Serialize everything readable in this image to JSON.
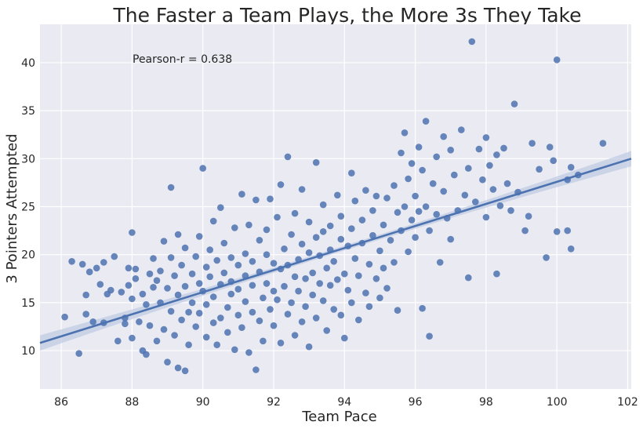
{
  "chart_data": {
    "type": "scatter",
    "title": "The Faster a Team Plays, the More 3s They Take",
    "xlabel": "Team Pace",
    "ylabel": "3 Pointers Attempted",
    "xlim": [
      85.4,
      102.1
    ],
    "ylim": [
      6.0,
      44.0
    ],
    "xticks": [
      "86",
      "88",
      "90",
      "92",
      "94",
      "96",
      "98",
      "100",
      "102"
    ],
    "yticks": [
      "10",
      "15",
      "20",
      "25",
      "30",
      "35",
      "40"
    ],
    "grid": true,
    "annotation": "Pearson-r = 0.638",
    "colors": {
      "background": "#EAEAF2",
      "grid": "#FFFFFF",
      "point": "#4C72B0",
      "line": "#4C72B0",
      "ci_band": "#C0CCE3"
    },
    "regression": {
      "x": [
        85.4,
        102.1
      ],
      "y": [
        10.8,
        30.0
      ],
      "ci_halfwidth_edge": 0.8,
      "ci_halfwidth_center": 0.25
    },
    "points": [
      [
        86.1,
        13.5
      ],
      [
        86.3,
        19.3
      ],
      [
        86.5,
        9.7
      ],
      [
        86.6,
        19.0
      ],
      [
        86.7,
        13.8
      ],
      [
        86.7,
        15.8
      ],
      [
        86.8,
        18.2
      ],
      [
        86.9,
        13.0
      ],
      [
        87.0,
        18.6
      ],
      [
        87.1,
        16.9
      ],
      [
        87.2,
        12.9
      ],
      [
        87.2,
        19.2
      ],
      [
        87.3,
        15.9
      ],
      [
        87.4,
        16.3
      ],
      [
        87.5,
        19.8
      ],
      [
        87.6,
        11.0
      ],
      [
        87.7,
        16.1
      ],
      [
        87.8,
        13.4
      ],
      [
        87.8,
        12.8
      ],
      [
        87.9,
        16.8
      ],
      [
        87.9,
        18.6
      ],
      [
        88.0,
        11.3
      ],
      [
        88.0,
        22.3
      ],
      [
        88.0,
        15.4
      ],
      [
        88.1,
        18.5
      ],
      [
        88.1,
        17.5
      ],
      [
        88.2,
        13.0
      ],
      [
        88.3,
        10.0
      ],
      [
        88.3,
        15.9
      ],
      [
        88.4,
        14.8
      ],
      [
        88.4,
        9.6
      ],
      [
        88.5,
        18.0
      ],
      [
        88.5,
        12.6
      ],
      [
        88.6,
        19.6
      ],
      [
        88.6,
        16.6
      ],
      [
        88.7,
        11.0
      ],
      [
        88.7,
        17.3
      ],
      [
        88.8,
        15.0
      ],
      [
        88.8,
        18.3
      ],
      [
        88.9,
        12.2
      ],
      [
        88.9,
        21.4
      ],
      [
        89.0,
        8.8
      ],
      [
        89.0,
        16.5
      ],
      [
        89.1,
        19.7
      ],
      [
        89.1,
        27.0
      ],
      [
        89.1,
        14.1
      ],
      [
        89.2,
        11.6
      ],
      [
        89.2,
        17.8
      ],
      [
        89.3,
        8.2
      ],
      [
        89.3,
        15.8
      ],
      [
        89.3,
        22.1
      ],
      [
        89.4,
        13.2
      ],
      [
        89.4,
        18.9
      ],
      [
        89.5,
        7.9
      ],
      [
        89.5,
        16.7
      ],
      [
        89.5,
        20.7
      ],
      [
        89.6,
        14.0
      ],
      [
        89.6,
        10.6
      ],
      [
        89.7,
        18.0
      ],
      [
        89.7,
        15.0
      ],
      [
        89.8,
        12.5
      ],
      [
        89.8,
        19.8
      ],
      [
        89.9,
        17.0
      ],
      [
        89.9,
        21.9
      ],
      [
        89.9,
        13.9
      ],
      [
        90.0,
        29.0
      ],
      [
        90.0,
        16.2
      ],
      [
        90.1,
        11.4
      ],
      [
        90.1,
        18.7
      ],
      [
        90.1,
        14.8
      ],
      [
        90.2,
        20.5
      ],
      [
        90.2,
        17.7
      ],
      [
        90.3,
        12.9
      ],
      [
        90.3,
        23.5
      ],
      [
        90.3,
        15.6
      ],
      [
        90.4,
        19.4
      ],
      [
        90.4,
        10.6
      ],
      [
        90.5,
        24.9
      ],
      [
        90.5,
        16.9
      ],
      [
        90.5,
        13.4
      ],
      [
        90.6,
        18.1
      ],
      [
        90.6,
        21.2
      ],
      [
        90.7,
        14.5
      ],
      [
        90.7,
        11.9
      ],
      [
        90.8,
        17.2
      ],
      [
        90.8,
        19.7
      ],
      [
        90.8,
        15.9
      ],
      [
        90.9,
        10.1
      ],
      [
        90.9,
        22.8
      ],
      [
        91.0,
        13.7
      ],
      [
        91.0,
        18.9
      ],
      [
        91.0,
        16.4
      ],
      [
        91.1,
        26.3
      ],
      [
        91.1,
        12.4
      ],
      [
        91.2,
        20.1
      ],
      [
        91.2,
        15.1
      ],
      [
        91.2,
        17.8
      ],
      [
        91.3,
        9.8
      ],
      [
        91.3,
        23.1
      ],
      [
        91.4,
        14.0
      ],
      [
        91.4,
        19.3
      ],
      [
        91.4,
        16.8
      ],
      [
        91.5,
        8.0
      ],
      [
        91.5,
        25.7
      ],
      [
        91.6,
        21.5
      ],
      [
        91.6,
        13.1
      ],
      [
        91.6,
        18.2
      ],
      [
        91.7,
        15.5
      ],
      [
        91.7,
        11.0
      ],
      [
        91.8,
        20.0
      ],
      [
        91.8,
        17.0
      ],
      [
        91.8,
        22.6
      ],
      [
        91.9,
        14.3
      ],
      [
        91.9,
        25.8
      ],
      [
        92.0,
        16.2
      ],
      [
        92.0,
        19.1
      ],
      [
        92.0,
        12.6
      ],
      [
        92.1,
        23.9
      ],
      [
        92.1,
        15.3
      ],
      [
        92.2,
        18.5
      ],
      [
        92.2,
        10.8
      ],
      [
        92.2,
        27.3
      ],
      [
        92.3,
        20.6
      ],
      [
        92.3,
        16.7
      ],
      [
        92.4,
        13.8
      ],
      [
        92.4,
        30.2
      ],
      [
        92.4,
        18.9
      ],
      [
        92.5,
        22.1
      ],
      [
        92.5,
        15.0
      ],
      [
        92.6,
        17.7
      ],
      [
        92.6,
        11.6
      ],
      [
        92.6,
        24.3
      ],
      [
        92.7,
        19.5
      ],
      [
        92.7,
        16.2
      ],
      [
        92.8,
        13.0
      ],
      [
        92.8,
        21.1
      ],
      [
        92.8,
        26.8
      ],
      [
        92.9,
        17.5
      ],
      [
        92.9,
        14.6
      ],
      [
        93.0,
        20.2
      ],
      [
        93.0,
        10.4
      ],
      [
        93.0,
        23.4
      ],
      [
        93.1,
        18.1
      ],
      [
        93.1,
        15.8
      ],
      [
        93.2,
        29.6
      ],
      [
        93.2,
        21.8
      ],
      [
        93.2,
        13.4
      ],
      [
        93.3,
        17.0
      ],
      [
        93.3,
        19.9
      ],
      [
        93.4,
        25.2
      ],
      [
        93.4,
        15.2
      ],
      [
        93.4,
        22.4
      ],
      [
        93.5,
        18.6
      ],
      [
        93.5,
        12.1
      ],
      [
        93.6,
        20.5
      ],
      [
        93.6,
        16.8
      ],
      [
        93.6,
        23.0
      ],
      [
        93.7,
        14.3
      ],
      [
        93.7,
        19.3
      ],
      [
        93.8,
        26.2
      ],
      [
        93.8,
        17.4
      ],
      [
        93.9,
        21.6
      ],
      [
        93.9,
        13.7
      ],
      [
        93.9,
        24.0
      ],
      [
        94.0,
        18.0
      ],
      [
        94.0,
        11.3
      ],
      [
        94.1,
        20.9
      ],
      [
        94.1,
        16.3
      ],
      [
        94.2,
        28.5
      ],
      [
        94.2,
        22.7
      ],
      [
        94.2,
        15.0
      ],
      [
        94.3,
        19.6
      ],
      [
        94.3,
        25.6
      ],
      [
        94.4,
        17.8
      ],
      [
        94.4,
        13.2
      ],
      [
        94.5,
        23.6
      ],
      [
        94.5,
        21.2
      ],
      [
        94.6,
        16.0
      ],
      [
        94.6,
        26.7
      ],
      [
        94.7,
        19.0
      ],
      [
        94.7,
        14.6
      ],
      [
        94.8,
        24.6
      ],
      [
        94.8,
        22.0
      ],
      [
        94.9,
        17.5
      ],
      [
        94.9,
        26.1
      ],
      [
        95.0,
        20.4
      ],
      [
        95.0,
        15.5
      ],
      [
        95.1,
        23.1
      ],
      [
        95.1,
        18.6
      ],
      [
        95.2,
        25.9
      ],
      [
        95.2,
        16.5
      ],
      [
        95.3,
        21.5
      ],
      [
        95.4,
        27.2
      ],
      [
        95.4,
        19.2
      ],
      [
        95.5,
        24.4
      ],
      [
        95.5,
        14.2
      ],
      [
        95.6,
        22.5
      ],
      [
        95.6,
        30.6
      ],
      [
        95.7,
        25.0
      ],
      [
        95.7,
        32.7
      ],
      [
        95.8,
        20.3
      ],
      [
        95.8,
        27.9
      ],
      [
        95.9,
        23.6
      ],
      [
        95.9,
        29.5
      ],
      [
        96.0,
        21.8
      ],
      [
        96.0,
        26.1
      ],
      [
        96.1,
        31.2
      ],
      [
        96.1,
        24.5
      ],
      [
        96.2,
        28.8
      ],
      [
        96.2,
        14.4
      ],
      [
        96.3,
        33.9
      ],
      [
        96.3,
        25.0
      ],
      [
        96.4,
        22.5
      ],
      [
        96.4,
        11.5
      ],
      [
        96.5,
        27.4
      ],
      [
        96.6,
        30.2
      ],
      [
        96.6,
        24.2
      ],
      [
        96.7,
        19.2
      ],
      [
        96.8,
        32.3
      ],
      [
        96.8,
        26.6
      ],
      [
        96.9,
        23.8
      ],
      [
        97.0,
        30.9
      ],
      [
        97.0,
        21.6
      ],
      [
        97.1,
        28.3
      ],
      [
        97.2,
        24.6
      ],
      [
        97.3,
        33.0
      ],
      [
        97.4,
        26.2
      ],
      [
        97.5,
        17.6
      ],
      [
        97.5,
        29.0
      ],
      [
        97.6,
        42.2
      ],
      [
        97.7,
        25.5
      ],
      [
        97.8,
        31.0
      ],
      [
        97.9,
        27.8
      ],
      [
        98.0,
        23.9
      ],
      [
        98.0,
        32.2
      ],
      [
        98.1,
        29.3
      ],
      [
        98.2,
        26.8
      ],
      [
        98.3,
        18.0
      ],
      [
        98.3,
        30.4
      ],
      [
        98.4,
        25.1
      ],
      [
        98.5,
        31.1
      ],
      [
        98.6,
        27.4
      ],
      [
        98.7,
        24.6
      ],
      [
        98.8,
        35.7
      ],
      [
        98.9,
        26.5
      ],
      [
        99.1,
        22.5
      ],
      [
        99.2,
        24.0
      ],
      [
        99.3,
        31.6
      ],
      [
        99.5,
        28.9
      ],
      [
        99.7,
        19.7
      ],
      [
        99.8,
        31.2
      ],
      [
        99.9,
        29.8
      ],
      [
        100.0,
        22.4
      ],
      [
        100.0,
        40.3
      ],
      [
        100.3,
        27.8
      ],
      [
        100.3,
        22.5
      ],
      [
        100.4,
        29.1
      ],
      [
        100.4,
        20.6
      ],
      [
        100.6,
        28.3
      ],
      [
        101.3,
        31.6
      ]
    ]
  }
}
